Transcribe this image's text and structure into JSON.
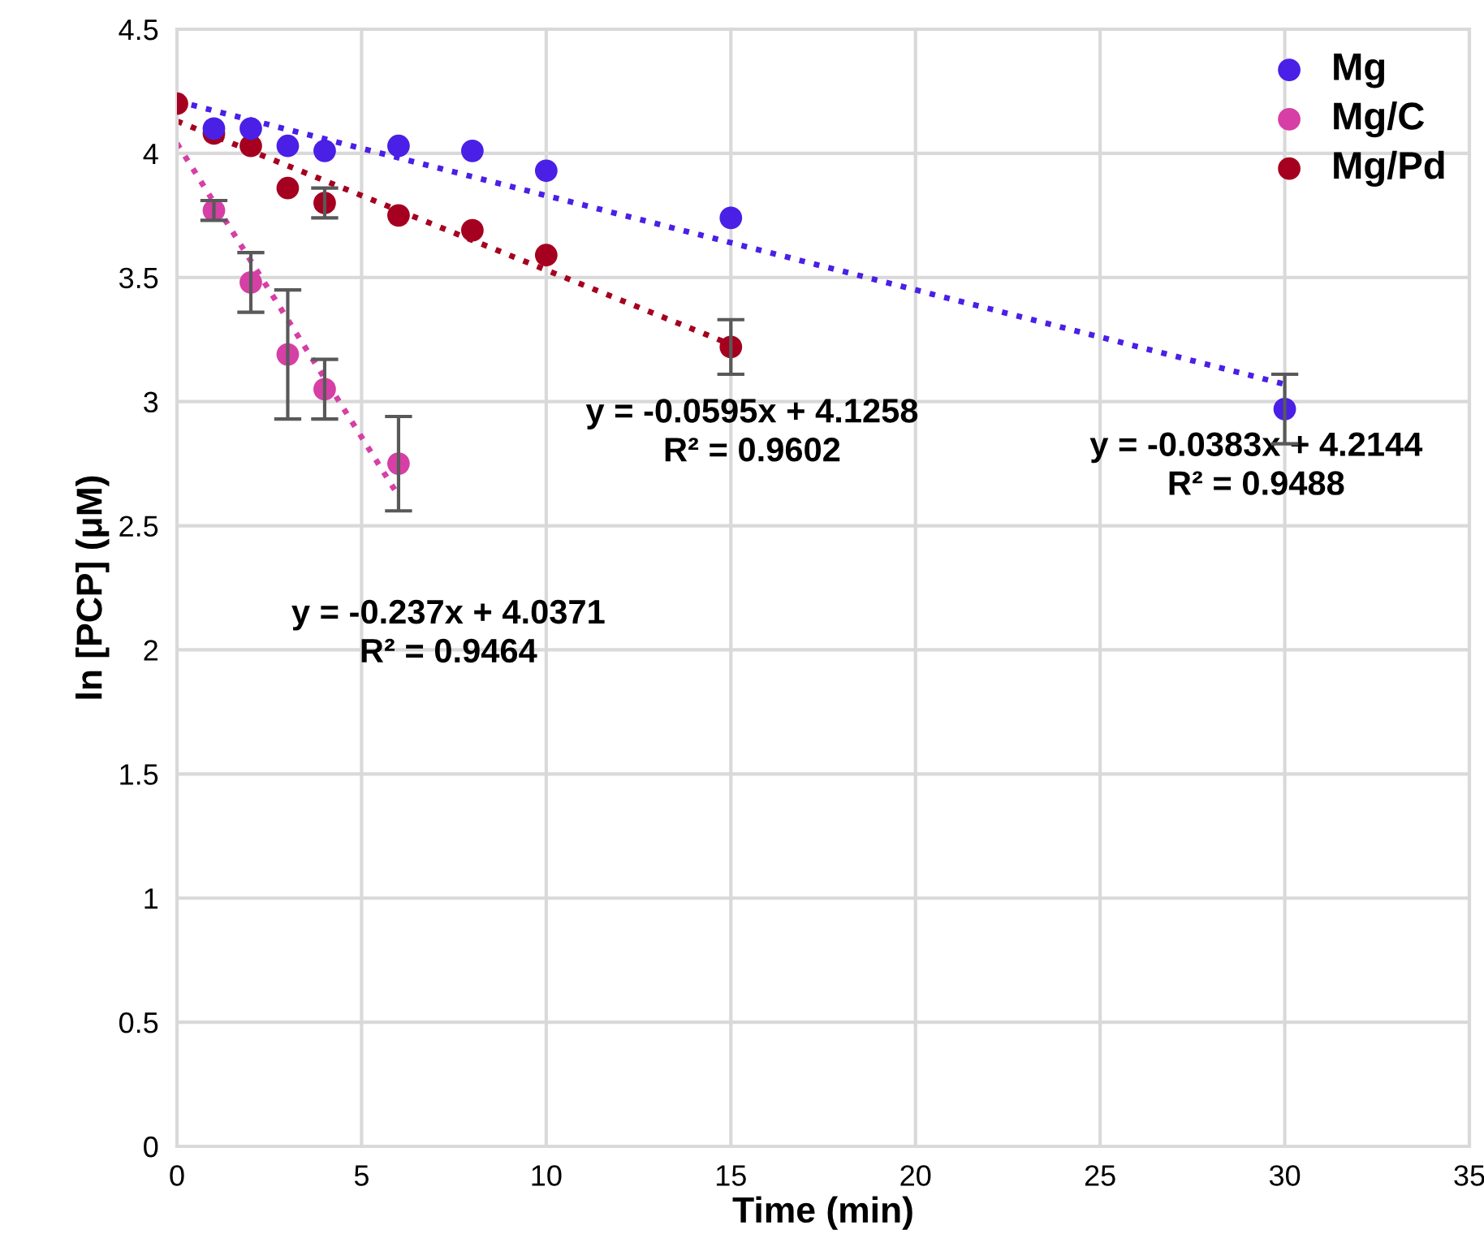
{
  "chart_data": {
    "type": "scatter",
    "xlabel": "Time (min)",
    "ylabel": "ln [PCP] (μM)",
    "xlim": [
      0,
      35
    ],
    "xticks": [
      0,
      5,
      10,
      15,
      20,
      25,
      30,
      35
    ],
    "ylim": [
      0,
      4.5
    ],
    "yticks": [
      0,
      0.5,
      1,
      1.5,
      2,
      2.5,
      3,
      3.5,
      4,
      4.5
    ],
    "grid": true,
    "legend": "top right",
    "marker": "circle",
    "series": [
      {
        "name": "Mg",
        "color": "#4a1fe6",
        "x": [
          1,
          2,
          3,
          4,
          6,
          8,
          10,
          15,
          30
        ],
        "values": [
          4.1,
          4.1,
          4.03,
          4.01,
          4.03,
          4.01,
          3.93,
          3.74,
          2.97
        ],
        "errors": [
          null,
          null,
          null,
          null,
          null,
          null,
          null,
          null,
          0.14
        ]
      },
      {
        "name": "Mg/C",
        "color": "#d63fa5",
        "x": [
          1,
          2,
          3,
          4,
          6
        ],
        "values": [
          3.77,
          3.48,
          3.19,
          3.05,
          2.75
        ],
        "errors": [
          0.04,
          0.12,
          0.26,
          0.12,
          0.19
        ]
      },
      {
        "name": "Mg/Pd",
        "color": "#a5001f",
        "x": [
          0,
          1,
          2,
          3,
          4,
          6,
          8,
          10,
          15
        ],
        "values": [
          4.2,
          4.08,
          4.03,
          3.86,
          3.8,
          3.75,
          3.69,
          3.59,
          3.22
        ],
        "errors": [
          null,
          null,
          null,
          null,
          0.06,
          null,
          null,
          null,
          0.11
        ]
      },
      {
        "type": "line",
        "marker": "none",
        "line_style": "dotted",
        "color": "#4a1fe6",
        "x": [
          0,
          30
        ],
        "values": [
          4.21,
          3.07
        ]
      },
      {
        "type": "line",
        "marker": "none",
        "line_style": "dotted",
        "color": "#d63fa5",
        "x": [
          0,
          6
        ],
        "values": [
          4.04,
          2.62
        ]
      },
      {
        "type": "line",
        "marker": "none",
        "line_style": "dotted",
        "color": "#a5001f",
        "x": [
          0,
          15
        ],
        "values": [
          4.13,
          3.23
        ]
      }
    ],
    "annotations": [
      "y = -0.0383x + 4.2144\nR² = 0.9488",
      "y = -0.237x + 4.0371\nR² = 0.9464",
      "y = -0.0595x + 4.1258\nR² = 0.9602"
    ]
  }
}
